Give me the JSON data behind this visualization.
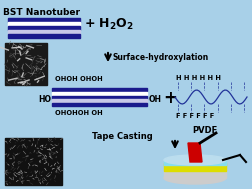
{
  "bg_color": "#a8d0e8",
  "title_text": "BST Nanotuber",
  "surface_hydrox_text": "Surface-hydroxylation",
  "ohoh_top": "OHOH OHOH",
  "ohoh_bottom": "OHOHOH OH",
  "ho_text": "HO",
  "oh_text": "OH",
  "plus_text": "+",
  "pvdf_label": "PVDF",
  "h_row": "H H H H H H",
  "f_row": "F F F F F F",
  "tape_casting": "Tape Casting",
  "nanotube_colors": [
    "#1a1a8c",
    "#ffffff",
    "#1a1a8c",
    "#c8c8e8",
    "#1a1a8c"
  ]
}
